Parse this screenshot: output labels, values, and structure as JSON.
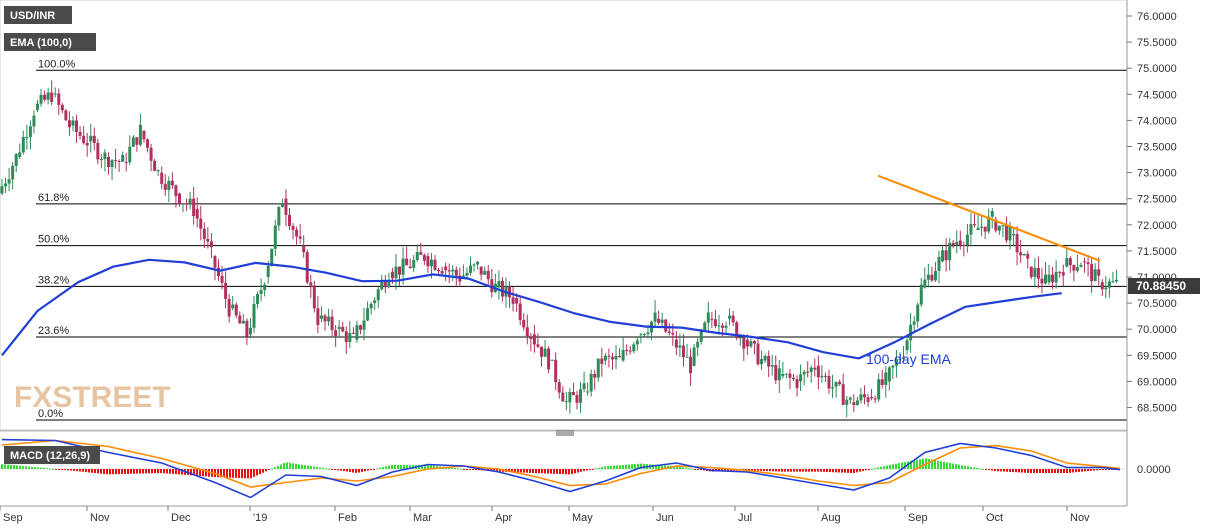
{
  "header": {
    "symbol_label": "USD/INR",
    "ema_label": "EMA (100,0)",
    "macd_label": "MACD (12,26,9)",
    "watermark": "FXSTREET",
    "ema_annotation": "100-day EMA"
  },
  "colors": {
    "up_candle": "#2e8b57",
    "down_candle": "#b03060",
    "ema": "#1f3fd6",
    "trendline": "#ff8c00",
    "fib_line": "#000000",
    "macd_line": "#1f3fd6",
    "signal_line": "#ff8c00",
    "hist_pos": "#33dd33",
    "hist_neg": "#ee1111",
    "label_box": "#4a4a4a",
    "price_box": "#3b3b3b",
    "watermark": "#e0b183"
  },
  "chart_data": [
    {
      "type": "candlestick",
      "title": "USD/INR",
      "y_axis_side": "right",
      "ylim": [
        68.2,
        76.2
      ],
      "y_ticks": [
        "76.0000",
        "75.5000",
        "75.0000",
        "74.5000",
        "74.0000",
        "73.5000",
        "73.0000",
        "72.5000",
        "72.0000",
        "71.5000",
        "71.0000",
        "70.5000",
        "70.0000",
        "69.5000",
        "69.0000",
        "68.5000"
      ],
      "x_labels": [
        "Sep",
        "Oct",
        "Nov",
        "Dec",
        "'19",
        "Feb",
        "Mar",
        "Apr",
        "May",
        "Jun",
        "Jul",
        "Aug",
        "Sep",
        "Oct",
        "Nov"
      ],
      "last_price": "70.88450",
      "fibonacci_levels": [
        {
          "label": "100.0%",
          "value": 74.96
        },
        {
          "label": "61.8%",
          "value": 72.4
        },
        {
          "label": "50.0%",
          "value": 71.6
        },
        {
          "label": "38.2%",
          "value": 70.82
        },
        {
          "label": "23.6%",
          "value": 69.85
        },
        {
          "label": "0.0%",
          "value": 68.26
        }
      ],
      "trendline": {
        "start": {
          "date": "Aug 20",
          "value": 72.94
        },
        "end": {
          "date": "Oct 31",
          "value": 71.31
        }
      },
      "ema_100": [
        {
          "date": "Sep 1",
          "value": 69.5
        },
        {
          "date": "Sep 15",
          "value": 70.35
        },
        {
          "date": "Oct 1",
          "value": 70.9
        },
        {
          "date": "Oct 15",
          "value": 71.2
        },
        {
          "date": "Oct 29",
          "value": 71.33
        },
        {
          "date": "Nov 12",
          "value": 71.28
        },
        {
          "date": "Nov 26",
          "value": 71.12
        },
        {
          "date": "Dec 10",
          "value": 71.27
        },
        {
          "date": "Dec 24",
          "value": 71.2
        },
        {
          "date": "Jan 7",
          "value": 71.08
        },
        {
          "date": "Jan 21",
          "value": 70.92
        },
        {
          "date": "Feb 4",
          "value": 70.93
        },
        {
          "date": "Feb 18",
          "value": 71.05
        },
        {
          "date": "Mar 4",
          "value": 70.97
        },
        {
          "date": "Mar 18",
          "value": 70.72
        },
        {
          "date": "Apr 1",
          "value": 70.52
        },
        {
          "date": "Apr 15",
          "value": 70.3
        },
        {
          "date": "Apr 29",
          "value": 70.14
        },
        {
          "date": "May 13",
          "value": 70.05
        },
        {
          "date": "May 27",
          "value": 70.03
        },
        {
          "date": "Jun 10",
          "value": 69.93
        },
        {
          "date": "Jun 24",
          "value": 69.85
        },
        {
          "date": "Jul 8",
          "value": 69.75
        },
        {
          "date": "Jul 22",
          "value": 69.56
        },
        {
          "date": "Aug 5",
          "value": 69.44
        },
        {
          "date": "Aug 19",
          "value": 69.75
        },
        {
          "date": "Sep 2",
          "value": 70.1
        },
        {
          "date": "Sep 16",
          "value": 70.43
        },
        {
          "date": "Sep 30",
          "value": 70.53
        },
        {
          "date": "Oct 14",
          "value": 70.63
        },
        {
          "date": "Oct 24",
          "value": 70.69
        }
      ],
      "candles_close": [
        {
          "date": "Sep 1",
          "close": 72.6
        },
        {
          "date": "Sep 8",
          "close": 73.3
        },
        {
          "date": "Sep 15",
          "close": 74.2
        },
        {
          "date": "Sep 22",
          "close": 74.5
        },
        {
          "date": "Sep 29",
          "close": 73.9
        },
        {
          "date": "Oct 6",
          "close": 73.6
        },
        {
          "date": "Oct 13",
          "close": 73.3
        },
        {
          "date": "Oct 20",
          "close": 73.2
        },
        {
          "date": "Oct 27",
          "close": 73.8
        },
        {
          "date": "Nov 3",
          "close": 73.0
        },
        {
          "date": "Nov 10",
          "close": 72.6
        },
        {
          "date": "Nov 17",
          "close": 72.3
        },
        {
          "date": "Nov 24",
          "close": 71.4
        },
        {
          "date": "Dec 1",
          "close": 70.4
        },
        {
          "date": "Dec 8",
          "close": 69.9
        },
        {
          "date": "Dec 15",
          "close": 71.0
        },
        {
          "date": "Dec 22",
          "close": 72.5
        },
        {
          "date": "Dec 29",
          "close": 71.6
        },
        {
          "date": "Jan 5",
          "close": 70.2
        },
        {
          "date": "Jan 12",
          "close": 70.0
        },
        {
          "date": "Jan 19",
          "close": 69.8
        },
        {
          "date": "Jan 26",
          "close": 70.5
        },
        {
          "date": "Feb 2",
          "close": 71.1
        },
        {
          "date": "Feb 9",
          "close": 71.2
        },
        {
          "date": "Feb 16",
          "close": 71.4
        },
        {
          "date": "Feb 23",
          "close": 71.2
        },
        {
          "date": "Mar 2",
          "close": 71.0
        },
        {
          "date": "Mar 9",
          "close": 71.2
        },
        {
          "date": "Mar 16",
          "close": 70.8
        },
        {
          "date": "Mar 23",
          "close": 70.6
        },
        {
          "date": "Mar 30",
          "close": 69.9
        },
        {
          "date": "Apr 6",
          "close": 69.4
        },
        {
          "date": "Apr 13",
          "close": 68.6
        },
        {
          "date": "Apr 20",
          "close": 68.8
        },
        {
          "date": "Apr 27",
          "close": 69.4
        },
        {
          "date": "May 4",
          "close": 69.4
        },
        {
          "date": "May 11",
          "close": 69.9
        },
        {
          "date": "May 18",
          "close": 70.2
        },
        {
          "date": "May 25",
          "close": 69.8
        },
        {
          "date": "Jun 1",
          "close": 69.3
        },
        {
          "date": "Jun 8",
          "close": 70.2
        },
        {
          "date": "Jun 15",
          "close": 70.2
        },
        {
          "date": "Jun 22",
          "close": 69.8
        },
        {
          "date": "Jun 29",
          "close": 69.4
        },
        {
          "date": "Jul 6",
          "close": 69.1
        },
        {
          "date": "Jul 13",
          "close": 69.0
        },
        {
          "date": "Jul 20",
          "close": 69.3
        },
        {
          "date": "Jul 27",
          "close": 68.9
        },
        {
          "date": "Aug 3",
          "close": 68.6
        },
        {
          "date": "Aug 10",
          "close": 68.7
        },
        {
          "date": "Aug 17",
          "close": 69.0
        },
        {
          "date": "Aug 24",
          "close": 69.6
        },
        {
          "date": "Aug 31",
          "close": 70.8
        },
        {
          "date": "Sep 7",
          "close": 71.3
        },
        {
          "date": "Sep 14",
          "close": 71.7
        },
        {
          "date": "Sep 21",
          "close": 71.9
        },
        {
          "date": "Sep 28",
          "close": 72.1
        },
        {
          "date": "Oct 5",
          "close": 71.8
        },
        {
          "date": "Oct 12",
          "close": 71.2
        },
        {
          "date": "Oct 19",
          "close": 70.9
        },
        {
          "date": "Oct 26",
          "close": 71.2
        },
        {
          "date": "Nov 2",
          "close": 71.3
        },
        {
          "date": "Nov 9",
          "close": 70.9
        },
        {
          "date": "Nov 16",
          "close": 70.85
        }
      ]
    },
    {
      "type": "macd",
      "title": "MACD (12,26,9)",
      "y_ticks": [
        "0.0000"
      ],
      "macd": [
        {
          "date": "Sep 1",
          "value": 0.98
        },
        {
          "date": "Sep 22",
          "value": 0.95
        },
        {
          "date": "Oct 13",
          "value": 0.55
        },
        {
          "date": "Nov 3",
          "value": 0.2
        },
        {
          "date": "Nov 24",
          "value": -0.45
        },
        {
          "date": "Dec 8",
          "value": -0.95
        },
        {
          "date": "Dec 22",
          "value": -0.2
        },
        {
          "date": "Jan 5",
          "value": -0.25
        },
        {
          "date": "Jan 19",
          "value": -0.55
        },
        {
          "date": "Feb 2",
          "value": -0.1
        },
        {
          "date": "Feb 16",
          "value": 0.15
        },
        {
          "date": "Mar 2",
          "value": 0.1
        },
        {
          "date": "Mar 16",
          "value": -0.1
        },
        {
          "date": "Mar 30",
          "value": -0.4
        },
        {
          "date": "Apr 13",
          "value": -0.75
        },
        {
          "date": "Apr 27",
          "value": -0.4
        },
        {
          "date": "May 11",
          "value": 0.05
        },
        {
          "date": "May 25",
          "value": 0.2
        },
        {
          "date": "Jun 8",
          "value": -0.05
        },
        {
          "date": "Jun 22",
          "value": -0.1
        },
        {
          "date": "Jul 6",
          "value": -0.3
        },
        {
          "date": "Jul 20",
          "value": -0.5
        },
        {
          "date": "Aug 3",
          "value": -0.7
        },
        {
          "date": "Aug 17",
          "value": -0.3
        },
        {
          "date": "Aug 31",
          "value": 0.55
        },
        {
          "date": "Sep 14",
          "value": 0.85
        },
        {
          "date": "Sep 28",
          "value": 0.7
        },
        {
          "date": "Oct 12",
          "value": 0.45
        },
        {
          "date": "Oct 26",
          "value": 0.05
        },
        {
          "date": "Nov 9",
          "value": 0.05
        },
        {
          "date": "Nov 16",
          "value": -0.02
        }
      ],
      "signal": [
        {
          "date": "Sep 1",
          "value": 0.8
        },
        {
          "date": "Sep 22",
          "value": 0.95
        },
        {
          "date": "Oct 13",
          "value": 0.75
        },
        {
          "date": "Nov 3",
          "value": 0.35
        },
        {
          "date": "Nov 24",
          "value": -0.15
        },
        {
          "date": "Dec 8",
          "value": -0.6
        },
        {
          "date": "Dec 22",
          "value": -0.45
        },
        {
          "date": "Jan 5",
          "value": -0.3
        },
        {
          "date": "Jan 19",
          "value": -0.4
        },
        {
          "date": "Feb 2",
          "value": -0.25
        },
        {
          "date": "Feb 16",
          "value": 0.0
        },
        {
          "date": "Mar 2",
          "value": 0.1
        },
        {
          "date": "Mar 16",
          "value": 0.0
        },
        {
          "date": "Mar 30",
          "value": -0.25
        },
        {
          "date": "Apr 13",
          "value": -0.55
        },
        {
          "date": "Apr 27",
          "value": -0.5
        },
        {
          "date": "May 11",
          "value": -0.15
        },
        {
          "date": "May 25",
          "value": 0.1
        },
        {
          "date": "Jun 8",
          "value": 0.05
        },
        {
          "date": "Jun 22",
          "value": -0.05
        },
        {
          "date": "Jul 6",
          "value": -0.2
        },
        {
          "date": "Jul 20",
          "value": -0.4
        },
        {
          "date": "Aug 3",
          "value": -0.55
        },
        {
          "date": "Aug 17",
          "value": -0.45
        },
        {
          "date": "Aug 31",
          "value": 0.15
        },
        {
          "date": "Sep 14",
          "value": 0.7
        },
        {
          "date": "Sep 28",
          "value": 0.78
        },
        {
          "date": "Oct 12",
          "value": 0.6
        },
        {
          "date": "Oct 26",
          "value": 0.2
        },
        {
          "date": "Nov 9",
          "value": 0.08
        },
        {
          "date": "Nov 16",
          "value": 0.02
        }
      ]
    }
  ]
}
